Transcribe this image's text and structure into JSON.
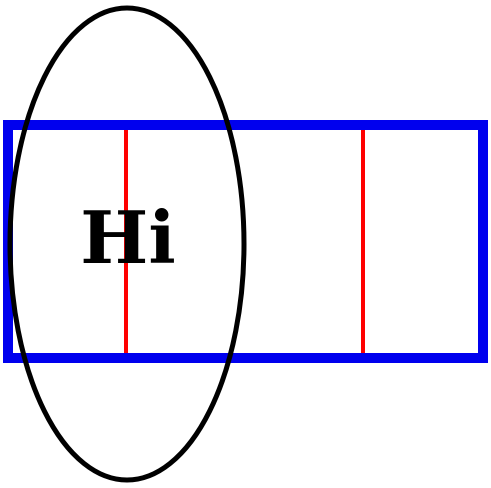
{
  "figure": {
    "label": "Hi",
    "colors": {
      "background": "#ffffff",
      "rectangle_stroke": "#0000ee",
      "divider_stroke": "#ff0000",
      "ellipse_stroke": "#000000",
      "text": "#000000"
    }
  }
}
